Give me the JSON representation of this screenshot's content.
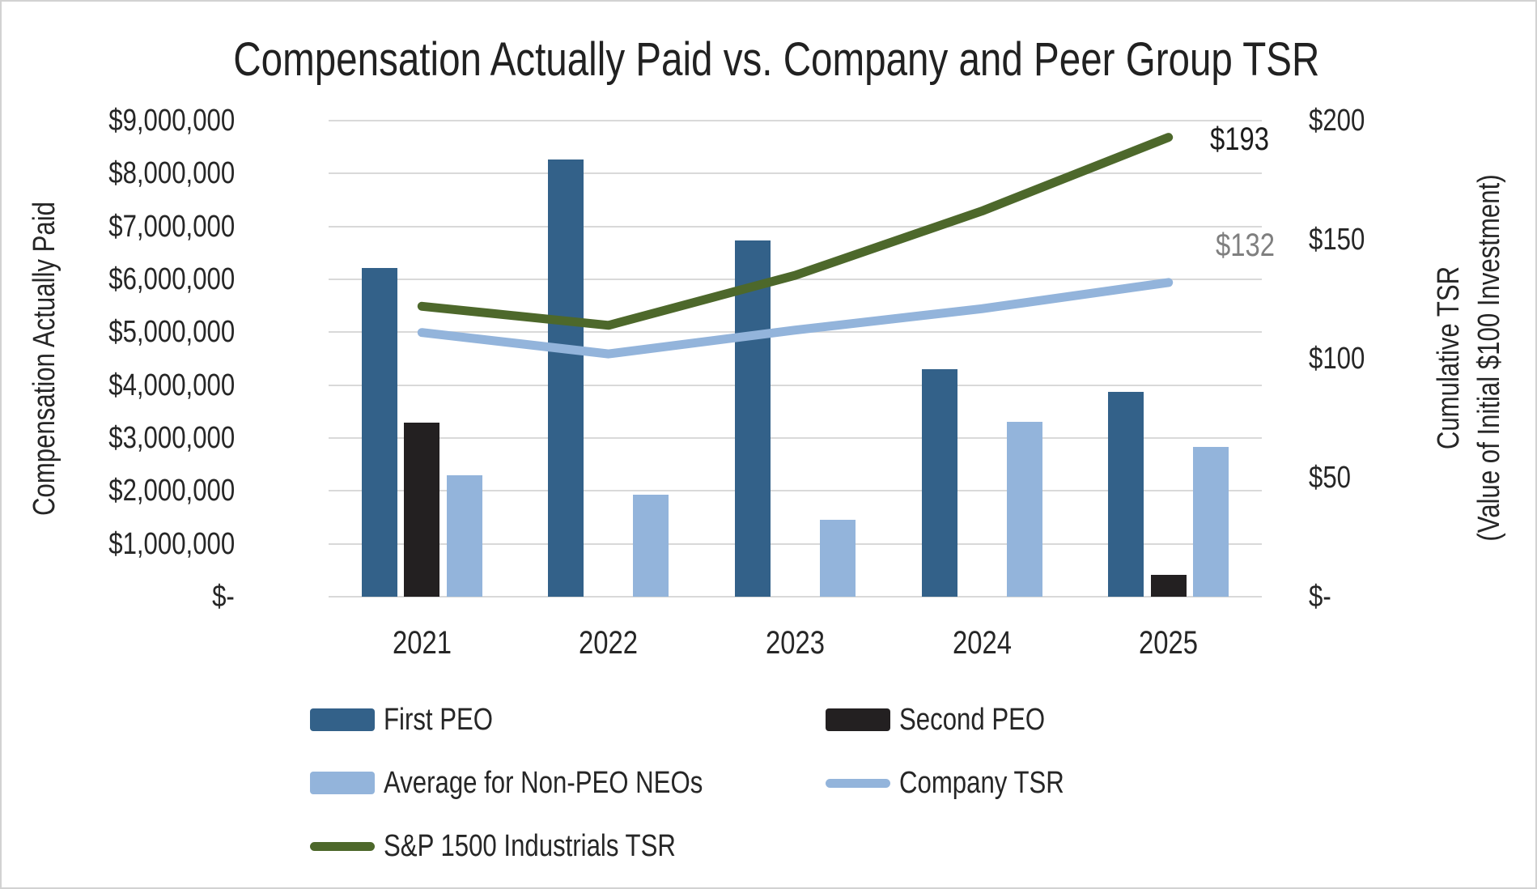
{
  "title": "Compensation Actually Paid vs. Company and Peer Group TSR",
  "left_axis": {
    "title": "Compensation Actually Paid",
    "tick_labels": [
      "$9,000,000",
      "$8,000,000",
      "$7,000,000",
      "$6,000,000",
      "$5,000,000",
      "$4,000,000",
      "$3,000,000",
      "$2,000,000",
      "$1,000,000",
      "$-"
    ]
  },
  "right_axis": {
    "title_line1": "Cumulative TSR",
    "title_line2": "(Value of Initial $100 Investment)",
    "tick_labels": [
      "$200",
      "$150",
      "$100",
      "$50",
      "$-"
    ]
  },
  "colors": {
    "first_peo": "#336189",
    "second_peo": "#232021",
    "non_peo": "#93b4db",
    "company_tsr": "#93b4db",
    "sp1500_tsr": "#4d682b",
    "gridline": "#d9d9d9",
    "text": "#262626",
    "sp_end_label_text": "#1c1c1c",
    "company_end_label_text": "#7f7f7f"
  },
  "chart_data": {
    "type": "bar",
    "subtype": "clustered-bar-with-lines-combo",
    "title": "Compensation Actually Paid vs. Company and Peer Group TSR",
    "categories": [
      "2021",
      "2022",
      "2023",
      "2024",
      "2025"
    ],
    "left_ylabel": "Compensation Actually Paid",
    "right_ylabel": "Cumulative TSR (Value of Initial $100 Investment)",
    "left_ylim": [
      0,
      9000000
    ],
    "right_ylim": [
      0,
      200
    ],
    "gridline_interval_left": 1000000,
    "grid": "horizontal-on",
    "legend_position": "bottom",
    "bar_series": [
      {
        "name": "First PEO",
        "color_key": "first_peo",
        "values": [
          6210000,
          8260000,
          6740000,
          4300000,
          3870000
        ]
      },
      {
        "name": "Second PEO",
        "color_key": "second_peo",
        "values": [
          3290000,
          null,
          null,
          null,
          410000
        ]
      },
      {
        "name": "Average for Non-PEO NEOs",
        "color_key": "non_peo",
        "values": [
          2300000,
          1930000,
          1460000,
          3310000,
          2840000
        ]
      }
    ],
    "line_series": [
      {
        "name": "Company TSR",
        "color_key": "company_tsr",
        "values": [
          111,
          102,
          112,
          121,
          132
        ],
        "end_label": "$132",
        "end_label_color_key": "company_end_label_text"
      },
      {
        "name": "S&P 1500 Industrials TSR",
        "color_key": "sp1500_tsr",
        "values": [
          122,
          114,
          135,
          162,
          193
        ],
        "end_label": "$193",
        "end_label_color_key": "sp_end_label_text"
      }
    ]
  },
  "legend": {
    "items": [
      {
        "label": "First PEO",
        "kind": "bar",
        "color_key": "first_peo"
      },
      {
        "label": "Second PEO",
        "kind": "bar",
        "color_key": "second_peo"
      },
      {
        "label": "Average for Non-PEO NEOs",
        "kind": "bar",
        "color_key": "non_peo"
      },
      {
        "label": "Company TSR",
        "kind": "line",
        "color_key": "company_tsr"
      },
      {
        "label": "S&P 1500 Industrials TSR",
        "kind": "line",
        "color_key": "sp1500_tsr"
      }
    ]
  }
}
